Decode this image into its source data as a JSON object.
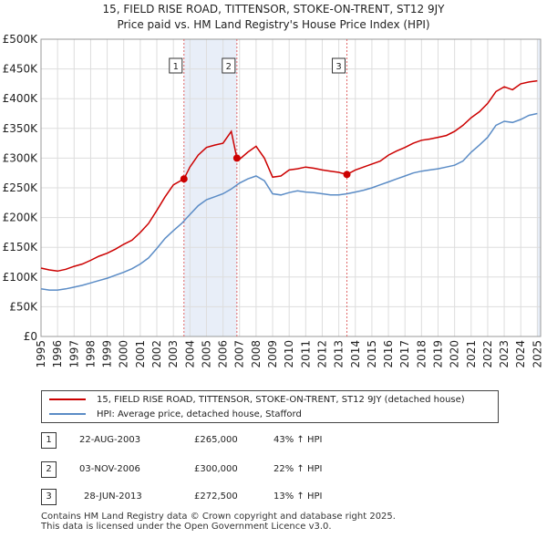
{
  "title_line1": "15, FIELD RISE ROAD, TITTENSOR, STOKE-ON-TRENT, ST12 9JY",
  "title_line2": "Price paid vs. HM Land Registry's House Price Index (HPI)",
  "colors": {
    "property": "#cc0000",
    "hpi": "#5b8cc6",
    "vline": "#e06666",
    "shade": "#e8eef8",
    "grid": "#dddddd"
  },
  "chart_data": {
    "type": "line",
    "xlim": [
      1995,
      2025.2
    ],
    "ylim": [
      0,
      500000
    ],
    "yticks": [
      0,
      50000,
      100000,
      150000,
      200000,
      250000,
      300000,
      350000,
      400000,
      450000,
      500000
    ],
    "ytick_labels": [
      "£0",
      "£50K",
      "£100K",
      "£150K",
      "£200K",
      "£250K",
      "£300K",
      "£350K",
      "£400K",
      "£450K",
      "£500K"
    ],
    "xticks": [
      1995,
      1996,
      1997,
      1998,
      1999,
      2000,
      2001,
      2002,
      2003,
      2004,
      2005,
      2006,
      2007,
      2008,
      2009,
      2010,
      2011,
      2012,
      2013,
      2014,
      2015,
      2016,
      2017,
      2018,
      2019,
      2020,
      2021,
      2022,
      2023,
      2024,
      2025
    ],
    "shaded_regions": [
      [
        2003.64,
        2006.84
      ],
      [
        2025.0,
        2025.2
      ]
    ],
    "series": [
      {
        "name": "15, FIELD RISE ROAD, TITTENSOR, STOKE-ON-TRENT, ST12 9JY (detached house)",
        "color": "#cc0000",
        "x": [
          1995,
          1995.5,
          1996,
          1996.5,
          1997,
          1997.5,
          1998,
          1998.5,
          1999,
          1999.5,
          2000,
          2000.5,
          2001,
          2001.5,
          2002,
          2002.5,
          2003,
          2003.64,
          2004,
          2004.5,
          2005,
          2005.5,
          2006,
          2006.5,
          2006.84,
          2007,
          2007.5,
          2008,
          2008.5,
          2009,
          2009.5,
          2010,
          2010.5,
          2011,
          2011.5,
          2012,
          2012.5,
          2013,
          2013.49,
          2014,
          2014.5,
          2015,
          2015.5,
          2016,
          2016.5,
          2017,
          2017.5,
          2018,
          2018.5,
          2019,
          2019.5,
          2020,
          2020.5,
          2021,
          2021.5,
          2022,
          2022.5,
          2023,
          2023.5,
          2024,
          2024.5,
          2025
        ],
        "y": [
          115000,
          112000,
          110000,
          113000,
          118000,
          122000,
          128000,
          135000,
          140000,
          147000,
          155000,
          162000,
          175000,
          190000,
          212000,
          235000,
          255000,
          265000,
          285000,
          305000,
          318000,
          322000,
          325000,
          345000,
          300000,
          298000,
          310000,
          320000,
          300000,
          268000,
          270000,
          280000,
          282000,
          285000,
          283000,
          280000,
          278000,
          276000,
          272500,
          280000,
          285000,
          290000,
          295000,
          305000,
          312000,
          318000,
          325000,
          330000,
          332000,
          335000,
          338000,
          345000,
          355000,
          368000,
          378000,
          392000,
          412000,
          420000,
          415000,
          425000,
          428000,
          430000
        ]
      },
      {
        "name": "HPI: Average price, detached house, Stafford",
        "color": "#5b8cc6",
        "x": [
          1995,
          1995.5,
          1996,
          1996.5,
          1997,
          1997.5,
          1998,
          1998.5,
          1999,
          1999.5,
          2000,
          2000.5,
          2001,
          2001.5,
          2002,
          2002.5,
          2003,
          2003.5,
          2004,
          2004.5,
          2005,
          2005.5,
          2006,
          2006.5,
          2007,
          2007.5,
          2008,
          2008.5,
          2009,
          2009.5,
          2010,
          2010.5,
          2011,
          2011.5,
          2012,
          2012.5,
          2013,
          2013.5,
          2014,
          2014.5,
          2015,
          2015.5,
          2016,
          2016.5,
          2017,
          2017.5,
          2018,
          2018.5,
          2019,
          2019.5,
          2020,
          2020.5,
          2021,
          2021.5,
          2022,
          2022.5,
          2023,
          2023.5,
          2024,
          2024.5,
          2025
        ],
        "y": [
          80000,
          78000,
          78000,
          80000,
          83000,
          86000,
          90000,
          94000,
          98000,
          103000,
          108000,
          114000,
          122000,
          132000,
          148000,
          165000,
          178000,
          190000,
          205000,
          220000,
          230000,
          235000,
          240000,
          248000,
          258000,
          265000,
          270000,
          262000,
          240000,
          238000,
          242000,
          245000,
          243000,
          242000,
          240000,
          238000,
          238000,
          240000,
          243000,
          246000,
          250000,
          255000,
          260000,
          265000,
          270000,
          275000,
          278000,
          280000,
          282000,
          285000,
          288000,
          295000,
          310000,
          322000,
          335000,
          355000,
          362000,
          360000,
          365000,
          372000,
          375000
        ]
      }
    ],
    "sales": [
      {
        "label": "1",
        "x": 2003.64,
        "y": 265000
      },
      {
        "label": "2",
        "x": 2006.84,
        "y": 300000
      },
      {
        "label": "3",
        "x": 2013.49,
        "y": 272500
      }
    ]
  },
  "legend": {
    "property_label": "15, FIELD RISE ROAD, TITTENSOR, STOKE-ON-TRENT, ST12 9JY (detached house)",
    "hpi_label": "HPI: Average price, detached house, Stafford"
  },
  "table": [
    {
      "num": "1",
      "date": "22-AUG-2003",
      "price": "£265,000",
      "hpi": "43% ↑ HPI"
    },
    {
      "num": "2",
      "date": "03-NOV-2006",
      "price": "£300,000",
      "hpi": "22% ↑ HPI"
    },
    {
      "num": "3",
      "date": "28-JUN-2013",
      "price": "£272,500",
      "hpi": "13% ↑ HPI"
    }
  ],
  "footer_line1": "Contains HM Land Registry data © Crown copyright and database right 2025.",
  "footer_line2": "This data is licensed under the Open Government Licence v3.0."
}
